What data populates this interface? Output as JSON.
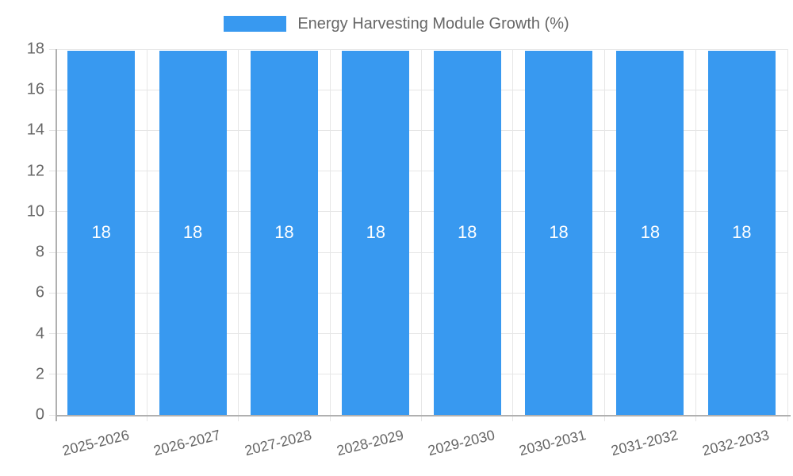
{
  "legend": {
    "label": "Energy Harvesting Module Growth (%)"
  },
  "chart_data": {
    "type": "bar",
    "categories": [
      "2025-2026",
      "2026-2027",
      "2027-2028",
      "2028-2029",
      "2029-2030",
      "2030-2031",
      "2031-2032",
      "2032-2033"
    ],
    "series": [
      {
        "name": "Energy Harvesting Module Growth (%)",
        "values": [
          18,
          18,
          18,
          18,
          18,
          18,
          18,
          18
        ]
      }
    ],
    "bar_labels": [
      "18",
      "18",
      "18",
      "18",
      "18",
      "18",
      "18",
      "18"
    ],
    "title": "",
    "xlabel": "",
    "ylabel": "",
    "ylim": [
      0,
      18
    ],
    "ytick_step": 2,
    "ytick_labels": [
      "0",
      "2",
      "4",
      "6",
      "8",
      "10",
      "12",
      "14",
      "16",
      "18"
    ],
    "grid": true,
    "legend_position": "top",
    "bar_color": "#3899f0",
    "bar_label_color": "#ffffff",
    "text_color": "#666666",
    "grid_color": "#e6e6e6",
    "axis_color": "#b0b0b0",
    "background_color": "#ffffff"
  }
}
